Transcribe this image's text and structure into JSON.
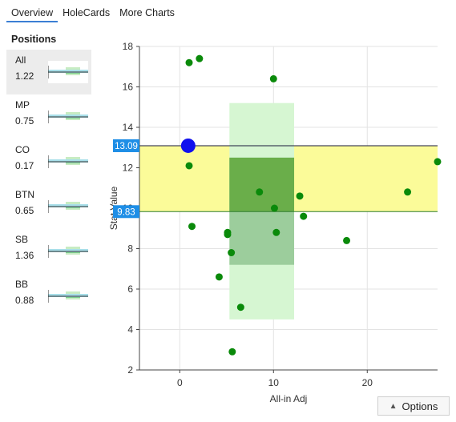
{
  "tabs": [
    {
      "label": "Overview",
      "active": true
    },
    {
      "label": "HoleCards",
      "active": false
    },
    {
      "label": "More Charts",
      "active": false
    }
  ],
  "sidebar": {
    "title": "Positions",
    "items": [
      {
        "name": "All",
        "value": "1.22",
        "selected": true
      },
      {
        "name": "MP",
        "value": "0.75",
        "selected": false
      },
      {
        "name": "CO",
        "value": "0.17",
        "selected": false
      },
      {
        "name": "BTN",
        "value": "0.65",
        "selected": false
      },
      {
        "name": "SB",
        "value": "1.36",
        "selected": false
      },
      {
        "name": "BB",
        "value": "0.88",
        "selected": false
      }
    ]
  },
  "options_label": "Options",
  "chart_data": {
    "type": "scatter",
    "xlabel": "All-in Adj",
    "ylabel": "Stat Value",
    "xlim": [
      -4.3,
      27.5
    ],
    "ylim": [
      2,
      18
    ],
    "xticks": [
      "0",
      "10",
      "20"
    ],
    "yticks": [
      "2",
      "4",
      "6",
      "8",
      "10",
      "12",
      "14",
      "16",
      "18"
    ],
    "x_tick_values": [
      0,
      10,
      20
    ],
    "y_tick_values": [
      2,
      4,
      6,
      8,
      10,
      12,
      14,
      16,
      18
    ],
    "upper_line": {
      "value": 13.09,
      "label": "13.09"
    },
    "lower_line": {
      "value": 9.83,
      "label": "9.83"
    },
    "x_band": {
      "range": [
        5.3,
        12.2
      ]
    },
    "x_band_inner": {
      "range": [
        5.3,
        12.2
      ],
      "y_range": [
        7.2,
        12.5
      ]
    },
    "x_band_y_range": [
      4.5,
      15.2
    ],
    "highlight_point": {
      "x": 0.9,
      "y": 13.09
    },
    "points": [
      {
        "x": 1.0,
        "y": 17.2
      },
      {
        "x": 2.1,
        "y": 17.4
      },
      {
        "x": 10.0,
        "y": 16.4
      },
      {
        "x": 1.0,
        "y": 12.1
      },
      {
        "x": 27.5,
        "y": 12.3
      },
      {
        "x": 8.5,
        "y": 10.8
      },
      {
        "x": 12.8,
        "y": 10.6
      },
      {
        "x": 24.3,
        "y": 10.8
      },
      {
        "x": 10.1,
        "y": 10.0
      },
      {
        "x": 13.2,
        "y": 9.6
      },
      {
        "x": 1.3,
        "y": 9.1
      },
      {
        "x": 5.1,
        "y": 8.8
      },
      {
        "x": 5.1,
        "y": 8.7
      },
      {
        "x": 10.3,
        "y": 8.8
      },
      {
        "x": 17.8,
        "y": 8.4
      },
      {
        "x": 5.5,
        "y": 7.8
      },
      {
        "x": 4.2,
        "y": 6.6
      },
      {
        "x": 6.5,
        "y": 5.1
      },
      {
        "x": 5.6,
        "y": 2.9
      }
    ],
    "colors": {
      "point": "#0a8a0a",
      "highlight": "#1010ee",
      "y_band": "#fbfb99",
      "x_band": "#d6f6d2",
      "overlap": "#7cbf4f",
      "overlap_inner": "#5aa35a",
      "upper_line": "#1a1a3a",
      "lower_line": "#2f7d2f",
      "label_bg": "#1e8ee6"
    }
  }
}
